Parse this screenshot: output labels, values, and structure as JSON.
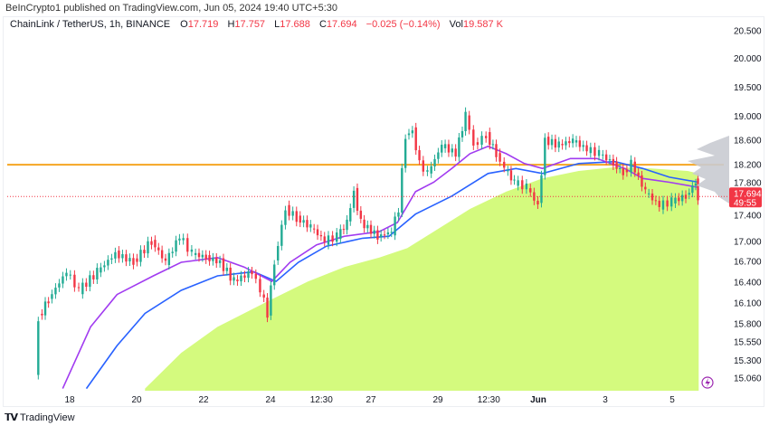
{
  "header": {
    "published": "BeInCrypto1 published on TradingView.com, Jun 05, 2024 19:40 UTC+5:30"
  },
  "legend": {
    "symbol": "ChainLink / TetherUS, 1h, BINANCE",
    "o_label": "O",
    "o": "17.719",
    "h_label": "H",
    "h": "17.757",
    "l_label": "L",
    "l": "17.688",
    "c_label": "C",
    "c": "17.694",
    "change": "−0.025 (−0.14%)",
    "vol_label": "Vol",
    "vol": "19.587 K"
  },
  "price_tag": {
    "price": "17.694",
    "countdown": "49:55"
  },
  "footer": {
    "brand": "TradingView"
  },
  "colors": {
    "up": "#22ab94",
    "down": "#f23645",
    "ema_fast": "#a13bf0",
    "ema_slow": "#2962ff",
    "ma_area": "#d4fa7e",
    "level": "#f5a623",
    "volume_profile": "#c9cbd1",
    "alert": "#9c27b0"
  },
  "chart_data": {
    "type": "candlestick",
    "y_scale": "log",
    "ylim": [
      14.92,
      20.5
    ],
    "grid": false,
    "y_ticks": [
      "20.500",
      "20.000",
      "19.500",
      "19.000",
      "18.600",
      "18.200",
      "17.800",
      "17.400",
      "17.000",
      "16.700",
      "16.400",
      "16.100",
      "15.800",
      "15.550",
      "15.300",
      "15.060"
    ],
    "x_ticks": [
      {
        "label": "18",
        "t": "05-18 00:00"
      },
      {
        "label": "20",
        "t": "05-20 00:00"
      },
      {
        "label": "22",
        "t": "05-22 00:00"
      },
      {
        "label": "24",
        "t": "05-24 00:00"
      },
      {
        "label": "12:30",
        "t": "05-25 12:30"
      },
      {
        "label": "27",
        "t": "05-27 00:00"
      },
      {
        "label": "29",
        "t": "05-29 00:00"
      },
      {
        "label": "12:30",
        "t": "05-30 12:30"
      },
      {
        "label": "Jun",
        "t": "06-01 00:00"
      },
      {
        "label": "3",
        "t": "06-03 00:00"
      },
      {
        "label": "5",
        "t": "06-05 00:00"
      }
    ],
    "closes": [
      [
        "05-17 00:00",
        15.05
      ],
      [
        "05-17 03:00",
        15.89
      ],
      [
        "05-17 10:00",
        16.15
      ],
      [
        "05-17 23:00",
        16.55
      ],
      [
        "05-18 08:00",
        16.28
      ],
      [
        "05-18 21:00",
        16.55
      ],
      [
        "05-19 10:00",
        16.82
      ],
      [
        "05-19 23:00",
        16.69
      ],
      [
        "05-20 12:00",
        17.01
      ],
      [
        "05-20 22:00",
        16.69
      ],
      [
        "05-21 08:00",
        17.08
      ],
      [
        "05-21 17:00",
        16.82
      ],
      [
        "05-22 03:00",
        16.76
      ],
      [
        "05-22 13:00",
        16.69
      ],
      [
        "05-22 23:00",
        16.41
      ],
      [
        "05-23 12:00",
        16.55
      ],
      [
        "05-23 18:00",
        16.28
      ],
      [
        "05-23 23:00",
        15.95
      ],
      [
        "05-24 04:00",
        16.69
      ],
      [
        "05-24 12:00",
        17.5
      ],
      [
        "05-24 20:00",
        17.36
      ],
      [
        "05-25 06:00",
        17.22
      ],
      [
        "05-25 16:00",
        17.01
      ],
      [
        "05-26 01:00",
        17.08
      ],
      [
        "05-26 08:00",
        17.29
      ],
      [
        "05-26 13:00",
        17.77
      ],
      [
        "05-26 18:00",
        17.29
      ],
      [
        "05-27 06:00",
        17.08
      ],
      [
        "05-27 16:00",
        17.15
      ],
      [
        "05-27 21:00",
        17.5
      ],
      [
        "05-28 02:00",
        18.68
      ],
      [
        "05-28 07:00",
        18.76
      ],
      [
        "05-28 12:00",
        18.22
      ],
      [
        "05-28 18:00",
        18.06
      ],
      [
        "05-29 04:00",
        18.52
      ],
      [
        "05-29 14:00",
        18.38
      ],
      [
        "05-29 21:00",
        19.02
      ],
      [
        "05-30 03:00",
        18.52
      ],
      [
        "05-30 12:00",
        18.68
      ],
      [
        "05-30 19:00",
        18.38
      ],
      [
        "05-31 01:00",
        18.14
      ],
      [
        "05-31 08:00",
        17.92
      ],
      [
        "05-31 17:00",
        17.84
      ],
      [
        "06-01 01:00",
        17.55
      ],
      [
        "06-01 06:00",
        18.6
      ],
      [
        "06-01 16:00",
        18.52
      ],
      [
        "06-02 02:00",
        18.6
      ],
      [
        "06-02 12:00",
        18.45
      ],
      [
        "06-02 21:00",
        18.38
      ],
      [
        "06-03 07:00",
        18.22
      ],
      [
        "06-03 14:00",
        18.06
      ],
      [
        "06-03 20:00",
        18.22
      ],
      [
        "06-04 06:00",
        17.77
      ],
      [
        "06-04 16:00",
        17.55
      ],
      [
        "06-05 01:00",
        17.62
      ],
      [
        "06-05 11:00",
        17.7
      ],
      [
        "06-05 18:00",
        17.92
      ],
      [
        "06-05 19:00",
        17.694
      ]
    ],
    "ema_fast": [
      [
        "05-17 19:00",
        14.92
      ],
      [
        "05-18 15:00",
        15.76
      ],
      [
        "05-19 10:00",
        16.22
      ],
      [
        "05-20 12:00",
        16.49
      ],
      [
        "05-21 08:00",
        16.69
      ],
      [
        "05-22 10:00",
        16.76
      ],
      [
        "05-23 05:00",
        16.62
      ],
      [
        "05-24 01:00",
        16.41
      ],
      [
        "05-24 14:00",
        16.69
      ],
      [
        "05-25 09:00",
        16.95
      ],
      [
        "05-26 05:00",
        17.08
      ],
      [
        "05-27 06:00",
        17.15
      ],
      [
        "05-27 19:00",
        17.29
      ],
      [
        "05-28 08:00",
        17.77
      ],
      [
        "05-28 21:00",
        17.92
      ],
      [
        "05-29 10:00",
        18.14
      ],
      [
        "05-29 23:00",
        18.38
      ],
      [
        "05-30 12:00",
        18.5
      ],
      [
        "05-31 01:00",
        18.38
      ],
      [
        "05-31 14:00",
        18.22
      ],
      [
        "06-01 03:00",
        18.14
      ],
      [
        "06-01 23:00",
        18.3
      ],
      [
        "06-02 18:00",
        18.3
      ],
      [
        "06-03 14:00",
        18.14
      ],
      [
        "06-04 03:00",
        17.98
      ],
      [
        "06-04 22:00",
        17.92
      ],
      [
        "06-05 18:00",
        17.84
      ],
      [
        "06-05 19:00",
        17.8
      ]
    ],
    "ema_slow": [
      [
        "05-18 12:00",
        14.92
      ],
      [
        "05-19 10:00",
        15.5
      ],
      [
        "05-20 06:00",
        15.95
      ],
      [
        "05-21 08:00",
        16.28
      ],
      [
        "05-22 10:00",
        16.49
      ],
      [
        "05-23 12:00",
        16.55
      ],
      [
        "05-24 04:00",
        16.41
      ],
      [
        "05-24 20:00",
        16.69
      ],
      [
        "05-25 16:00",
        16.93
      ],
      [
        "05-26 18:00",
        17.05
      ],
      [
        "05-27 13:00",
        17.08
      ],
      [
        "05-28 08:00",
        17.42
      ],
      [
        "05-29 10:00",
        17.7
      ],
      [
        "05-30 12:00",
        18.06
      ],
      [
        "05-31 08:00",
        18.14
      ],
      [
        "06-01 03:00",
        18.06
      ],
      [
        "06-02 05:00",
        18.22
      ],
      [
        "06-03 07:00",
        18.25
      ],
      [
        "06-04 03:00",
        18.14
      ],
      [
        "06-04 22:00",
        18.0
      ],
      [
        "06-05 19:00",
        17.92
      ]
    ],
    "ma_area": [
      [
        "05-20 06:00",
        14.92
      ],
      [
        "05-21 08:00",
        15.4
      ],
      [
        "05-22 10:00",
        15.76
      ],
      [
        "05-23 12:00",
        16.02
      ],
      [
        "05-24 01:00",
        16.15
      ],
      [
        "05-25 03:00",
        16.41
      ],
      [
        "05-26 05:00",
        16.62
      ],
      [
        "05-27 06:00",
        16.76
      ],
      [
        "05-28 02:00",
        16.9
      ],
      [
        "05-28 21:00",
        17.15
      ],
      [
        "05-29 23:00",
        17.5
      ],
      [
        "05-31 01:00",
        17.77
      ],
      [
        "06-01 03:00",
        17.98
      ],
      [
        "06-02 05:00",
        18.1
      ],
      [
        "06-03 07:00",
        18.16
      ],
      [
        "06-04 09:00",
        18.14
      ],
      [
        "06-05 11:00",
        18.1
      ],
      [
        "06-05 19:00",
        18.06
      ]
    ],
    "level_line": 18.2,
    "last_price": 17.694
  }
}
